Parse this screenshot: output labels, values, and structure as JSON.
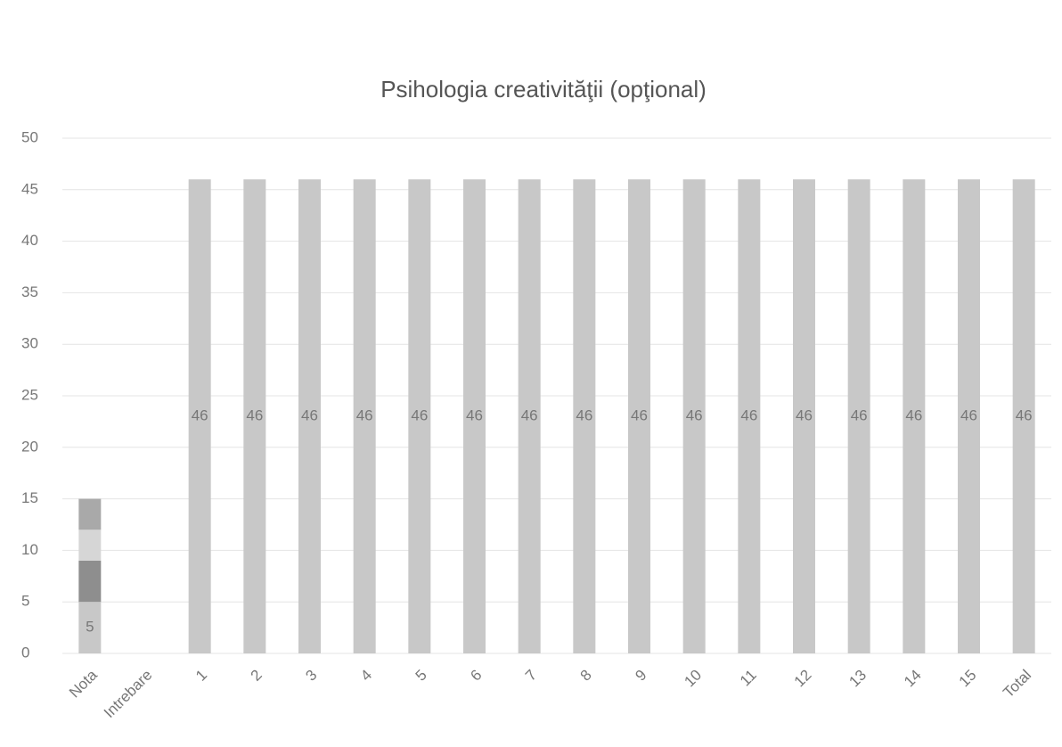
{
  "chart_data": {
    "type": "bar",
    "stacked": true,
    "title": "Psihologia creativităţii (opţional)",
    "categories": [
      "Nota",
      "Intrebare",
      "1",
      "2",
      "3",
      "4",
      "5",
      "6",
      "7",
      "8",
      "9",
      "10",
      "11",
      "12",
      "13",
      "14",
      "15",
      "Total"
    ],
    "series": [
      {
        "color": "#c8c8c8",
        "data_labels": true,
        "values": [
          5,
          null,
          46,
          46,
          46,
          46,
          46,
          46,
          46,
          46,
          46,
          46,
          46,
          46,
          46,
          46,
          46,
          46
        ]
      },
      {
        "color": "#8e8e8e",
        "data_labels": false,
        "values": [
          4,
          null,
          null,
          null,
          null,
          null,
          null,
          null,
          null,
          null,
          null,
          null,
          null,
          null,
          null,
          null,
          null,
          null
        ]
      },
      {
        "color": "#d6d6d6",
        "data_labels": false,
        "values": [
          3,
          null,
          null,
          null,
          null,
          null,
          null,
          null,
          null,
          null,
          null,
          null,
          null,
          null,
          null,
          null,
          null,
          null
        ]
      },
      {
        "color": "#a9a9a9",
        "data_labels": false,
        "values": [
          3,
          null,
          null,
          null,
          null,
          null,
          null,
          null,
          null,
          null,
          null,
          null,
          null,
          null,
          null,
          null,
          null,
          null
        ]
      }
    ],
    "ylim": [
      0,
      50
    ],
    "yticks": [
      0,
      5,
      10,
      15,
      20,
      25,
      30,
      35,
      40,
      45,
      50
    ],
    "grid": true
  }
}
